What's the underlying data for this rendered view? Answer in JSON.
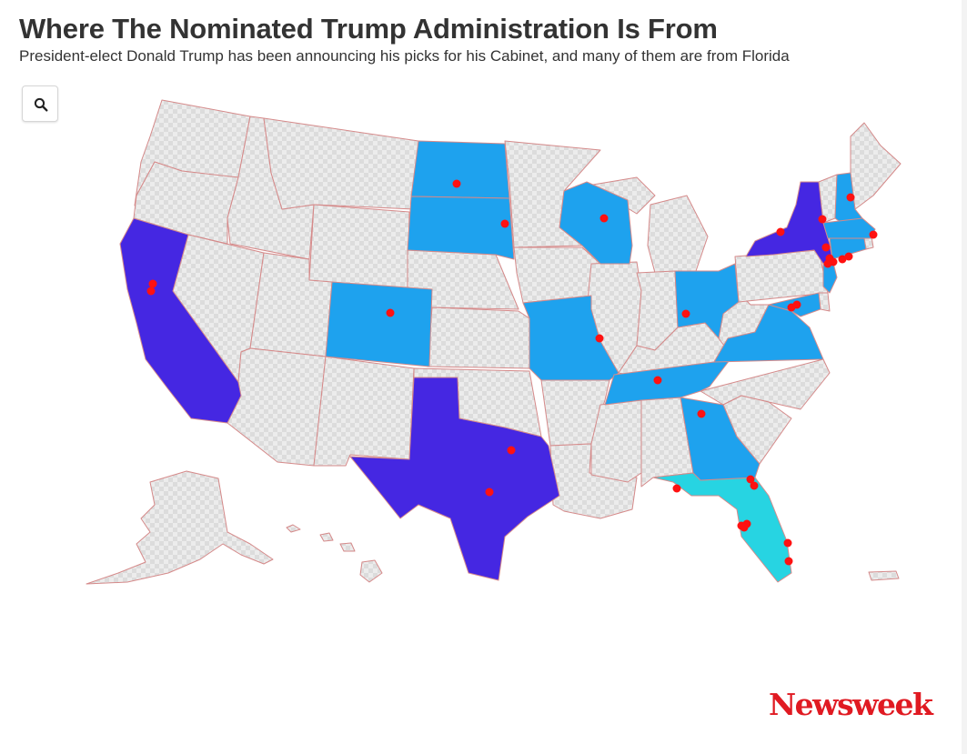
{
  "header": {
    "title": "Where The Nominated Trump Administration Is From",
    "subtitle": "President-elect Donald Trump has been announcing his picks for his Cabinet, and many of them are from Florida"
  },
  "search": {
    "icon": "search-icon"
  },
  "colors": {
    "no_data_fill": "#e6e6e6",
    "state_border": "#d58a8a",
    "one_pick": "#1ea2ee",
    "several_picks": "#4527e2",
    "most_picks": "#27d4e2",
    "marker": "#ff1111"
  },
  "map": {
    "highlighted_states": [
      {
        "state": "California",
        "level": "several_picks"
      },
      {
        "state": "Texas",
        "level": "several_picks"
      },
      {
        "state": "New York",
        "level": "several_picks"
      },
      {
        "state": "Florida",
        "level": "most_picks"
      },
      {
        "state": "North Dakota",
        "level": "one_pick"
      },
      {
        "state": "South Dakota",
        "level": "one_pick"
      },
      {
        "state": "Colorado",
        "level": "one_pick"
      },
      {
        "state": "Wisconsin",
        "level": "one_pick"
      },
      {
        "state": "Missouri",
        "level": "one_pick"
      },
      {
        "state": "Ohio",
        "level": "one_pick"
      },
      {
        "state": "Tennessee",
        "level": "one_pick"
      },
      {
        "state": "Georgia",
        "level": "one_pick"
      },
      {
        "state": "Virginia",
        "level": "one_pick"
      },
      {
        "state": "New Hampshire",
        "level": "one_pick"
      },
      {
        "state": "Massachusetts",
        "level": "one_pick"
      },
      {
        "state": "Connecticut",
        "level": "one_pick"
      },
      {
        "state": "New Jersey",
        "level": "one_pick"
      },
      {
        "state": "Maryland",
        "level": "one_pick"
      }
    ]
  },
  "branding": {
    "logo_text": "Newsweek"
  }
}
